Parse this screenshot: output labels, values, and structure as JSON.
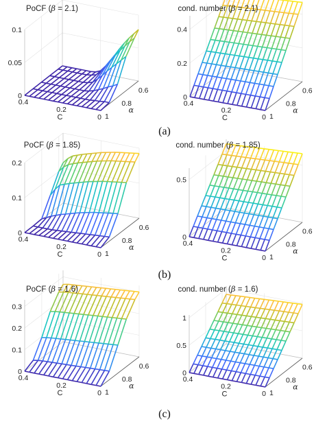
{
  "figure": {
    "captions": [
      "(a)",
      "(b)",
      "(c)"
    ]
  },
  "colormap": [
    "#3e26a8",
    "#4367fd",
    "#2e97ec",
    "#1ac7c2",
    "#5ad076",
    "#b8c12a",
    "#fdbe3d",
    "#f9fb0e"
  ],
  "chart_data": [
    {
      "type": "surface",
      "id": "pocf-a",
      "title_prefix": "PoCF (",
      "title_symbol": "β",
      "title_suffix": " = 2.1)",
      "xlabel": "C",
      "ylabel": "α",
      "c_range": [
        0,
        0.4
      ],
      "alpha_range": [
        0.55,
        1.0
      ],
      "zlim": [
        0,
        0.1
      ],
      "c_ticks": [
        "0.4",
        "0.2",
        "0"
      ],
      "alpha_ticks": [
        "1",
        "0.8",
        "0.6"
      ],
      "z_ticks": [
        "0",
        "0.05",
        "0.1"
      ],
      "grid": true,
      "c": [
        0,
        0.025,
        0.05,
        0.075,
        0.1,
        0.125,
        0.15,
        0.175,
        0.2,
        0.225,
        0.25,
        0.275,
        0.3,
        0.325,
        0.35,
        0.375,
        0.4
      ],
      "alpha": [
        1.0,
        0.9,
        0.8,
        0.7,
        0.6,
        0.55
      ],
      "z": [
        [
          0,
          0,
          0,
          0,
          0,
          0,
          0,
          0,
          0,
          0,
          0,
          0,
          0,
          0,
          0,
          0,
          0
        ],
        [
          0.002,
          0.002,
          0.001,
          0.001,
          0,
          0,
          0,
          0,
          0,
          0,
          0,
          0,
          0,
          0,
          0,
          0,
          0
        ],
        [
          0.02,
          0.016,
          0.013,
          0.009,
          0.006,
          0.003,
          0.001,
          0,
          0,
          0,
          0,
          0,
          0,
          0,
          0,
          0,
          0
        ],
        [
          0.052,
          0.045,
          0.038,
          0.031,
          0.024,
          0.016,
          0.009,
          0.003,
          0.001,
          0,
          0,
          0,
          0,
          0,
          0,
          0,
          0
        ],
        [
          0.07,
          0.063,
          0.055,
          0.047,
          0.038,
          0.028,
          0.018,
          0.009,
          0.003,
          0.001,
          0,
          0,
          0,
          0,
          0,
          0,
          0
        ],
        [
          0.078,
          0.07,
          0.062,
          0.053,
          0.043,
          0.032,
          0.022,
          0.012,
          0.004,
          0.001,
          0,
          0,
          0,
          0,
          0,
          0,
          0
        ]
      ]
    },
    {
      "type": "surface",
      "id": "cond-a",
      "title_prefix": "cond. number (",
      "title_symbol": "β",
      "title_suffix": " = 2.1)",
      "xlabel": "C",
      "ylabel": "α",
      "c_range": [
        0,
        0.4
      ],
      "alpha_range": [
        0.55,
        1.0
      ],
      "zlim": [
        0,
        0.48
      ],
      "c_ticks": [
        "0.4",
        "0.2",
        "0"
      ],
      "alpha_ticks": [
        "1",
        "0.8",
        "0.6"
      ],
      "z_ticks": [
        "0",
        "0.2",
        "0.4"
      ],
      "grid": true,
      "c": [
        0,
        0.025,
        0.05,
        0.075,
        0.1,
        0.125,
        0.15,
        0.175,
        0.2,
        0.225,
        0.25,
        0.275,
        0.3,
        0.325,
        0.35,
        0.375,
        0.4
      ],
      "alpha": [
        1.0,
        0.95,
        0.9,
        0.85,
        0.8,
        0.75,
        0.7,
        0.65,
        0.6,
        0.55
      ],
      "z_model": "linear",
      "z_at_alpha_max": 0.0,
      "z_at_alpha_min": 0.47,
      "c_sag": 0.03
    },
    {
      "type": "surface",
      "id": "pocf-b",
      "title_prefix": "PoCF (",
      "title_symbol": "β",
      "title_suffix": " = 1.85)",
      "xlabel": "C",
      "ylabel": "α",
      "c_range": [
        0,
        0.4
      ],
      "alpha_range": [
        0.55,
        1.0
      ],
      "zlim": [
        0,
        0.2
      ],
      "c_ticks": [
        "0.4",
        "0.2",
        "0"
      ],
      "alpha_ticks": [
        "1",
        "0.8",
        "0.6"
      ],
      "z_ticks": [
        "0",
        "0.1",
        "0.2"
      ],
      "grid": true,
      "c": [
        0,
        0.025,
        0.05,
        0.075,
        0.1,
        0.125,
        0.15,
        0.175,
        0.2,
        0.225,
        0.25,
        0.275,
        0.3,
        0.325,
        0.35,
        0.375,
        0.4
      ],
      "alpha": [
        1.0,
        0.9,
        0.8,
        0.7,
        0.6,
        0.55
      ],
      "z": [
        [
          0,
          0,
          0,
          0,
          0,
          0,
          0,
          0,
          0,
          0,
          0,
          0,
          0,
          0,
          0,
          0,
          0
        ],
        [
          0.012,
          0.011,
          0.01,
          0.009,
          0.008,
          0.007,
          0.006,
          0.005,
          0.004,
          0.003,
          0.002,
          0.001,
          0,
          0,
          0,
          0,
          0
        ],
        [
          0.06,
          0.058,
          0.056,
          0.054,
          0.052,
          0.05,
          0.047,
          0.044,
          0.041,
          0.037,
          0.033,
          0.029,
          0.025,
          0.02,
          0.015,
          0.008,
          0.002
        ],
        [
          0.13,
          0.128,
          0.126,
          0.124,
          0.122,
          0.12,
          0.117,
          0.114,
          0.111,
          0.107,
          0.103,
          0.099,
          0.095,
          0.09,
          0.085,
          0.07,
          0.05
        ],
        [
          0.17,
          0.168,
          0.166,
          0.164,
          0.162,
          0.16,
          0.157,
          0.154,
          0.151,
          0.147,
          0.143,
          0.139,
          0.135,
          0.13,
          0.125,
          0.115,
          0.1
        ],
        [
          0.185,
          0.183,
          0.181,
          0.179,
          0.177,
          0.175,
          0.172,
          0.169,
          0.166,
          0.162,
          0.158,
          0.154,
          0.15,
          0.145,
          0.14,
          0.13,
          0.115
        ]
      ]
    },
    {
      "type": "surface",
      "id": "cond-b",
      "title_prefix": "cond. number (",
      "title_symbol": "β",
      "title_suffix": " = 1.85)",
      "xlabel": "C",
      "ylabel": "α",
      "c_range": [
        0,
        0.4
      ],
      "alpha_range": [
        0.55,
        1.0
      ],
      "zlim": [
        0,
        0.6
      ],
      "c_ticks": [
        "0.4",
        "0.2",
        "0"
      ],
      "alpha_ticks": [
        "1",
        "0.8",
        "0.6"
      ],
      "z_ticks": [
        "0",
        "0.5"
      ],
      "grid": true,
      "c": [
        0,
        0.025,
        0.05,
        0.075,
        0.1,
        0.125,
        0.15,
        0.175,
        0.2,
        0.225,
        0.25,
        0.275,
        0.3,
        0.325,
        0.35,
        0.375,
        0.4
      ],
      "alpha": [
        1.0,
        0.95,
        0.9,
        0.85,
        0.8,
        0.75,
        0.7,
        0.65,
        0.6,
        0.55
      ],
      "z_model": "linear",
      "z_at_alpha_max": 0.0,
      "z_at_alpha_min": 0.6,
      "c_sag": 0.04
    },
    {
      "type": "surface",
      "id": "pocf-c",
      "title_prefix": "PoCF (",
      "title_symbol": "β",
      "title_suffix": " = 1.6)",
      "xlabel": "C",
      "ylabel": "α",
      "c_range": [
        0,
        0.4
      ],
      "alpha_range": [
        0.55,
        1.0
      ],
      "zlim": [
        0,
        0.33
      ],
      "c_ticks": [
        "0.4",
        "0.2",
        "0"
      ],
      "alpha_ticks": [
        "1",
        "0.8",
        "0.6"
      ],
      "z_ticks": [
        "0",
        "0.1",
        "0.2",
        "0.3"
      ],
      "grid": true,
      "c": [
        0,
        0.025,
        0.05,
        0.075,
        0.1,
        0.125,
        0.15,
        0.175,
        0.2,
        0.225,
        0.25,
        0.275,
        0.3,
        0.325,
        0.35,
        0.375,
        0.4
      ],
      "alpha": [
        1.0,
        0.9,
        0.8,
        0.7,
        0.6,
        0.55
      ],
      "z": [
        [
          0,
          0,
          0,
          0,
          0,
          0,
          0,
          0,
          0,
          0,
          0,
          0,
          0,
          0,
          0,
          0,
          0
        ],
        [
          0.04,
          0.039,
          0.038,
          0.037,
          0.036,
          0.035,
          0.034,
          0.033,
          0.032,
          0.031,
          0.03,
          0.029,
          0.028,
          0.027,
          0.026,
          0.024,
          0.02
        ],
        [
          0.13,
          0.128,
          0.126,
          0.124,
          0.122,
          0.12,
          0.118,
          0.116,
          0.114,
          0.112,
          0.11,
          0.108,
          0.106,
          0.104,
          0.102,
          0.099,
          0.095
        ],
        [
          0.22,
          0.218,
          0.216,
          0.214,
          0.212,
          0.21,
          0.208,
          0.206,
          0.204,
          0.202,
          0.2,
          0.198,
          0.196,
          0.194,
          0.192,
          0.189,
          0.185
        ],
        [
          0.28,
          0.278,
          0.276,
          0.274,
          0.272,
          0.27,
          0.268,
          0.266,
          0.264,
          0.262,
          0.26,
          0.258,
          0.256,
          0.254,
          0.252,
          0.249,
          0.245
        ],
        [
          0.3,
          0.298,
          0.296,
          0.294,
          0.292,
          0.29,
          0.288,
          0.286,
          0.284,
          0.282,
          0.28,
          0.278,
          0.276,
          0.274,
          0.272,
          0.27,
          0.265
        ]
      ]
    },
    {
      "type": "surface",
      "id": "cond-c",
      "title_prefix": "cond. number (",
      "title_symbol": "β",
      "title_suffix": " = 1.6)",
      "xlabel": "C",
      "ylabel": "α",
      "c_range": [
        0,
        0.4
      ],
      "alpha_range": [
        0.55,
        1.0
      ],
      "zlim": [
        0,
        1.05
      ],
      "c_ticks": [
        "0.4",
        "0.2",
        "0"
      ],
      "alpha_ticks": [
        "1",
        "0.8",
        "0.6"
      ],
      "z_ticks": [
        "0",
        "0.5",
        "1"
      ],
      "grid": true,
      "c": [
        0,
        0.025,
        0.05,
        0.075,
        0.1,
        0.125,
        0.15,
        0.175,
        0.2,
        0.225,
        0.25,
        0.275,
        0.3,
        0.325,
        0.35,
        0.375,
        0.4
      ],
      "alpha": [
        1.0,
        0.95,
        0.9,
        0.85,
        0.8,
        0.75,
        0.7,
        0.65,
        0.6,
        0.55
      ],
      "z_model": "linear",
      "z_at_alpha_max": 0.0,
      "z_at_alpha_min": 0.98,
      "c_sag": 0.08
    }
  ]
}
